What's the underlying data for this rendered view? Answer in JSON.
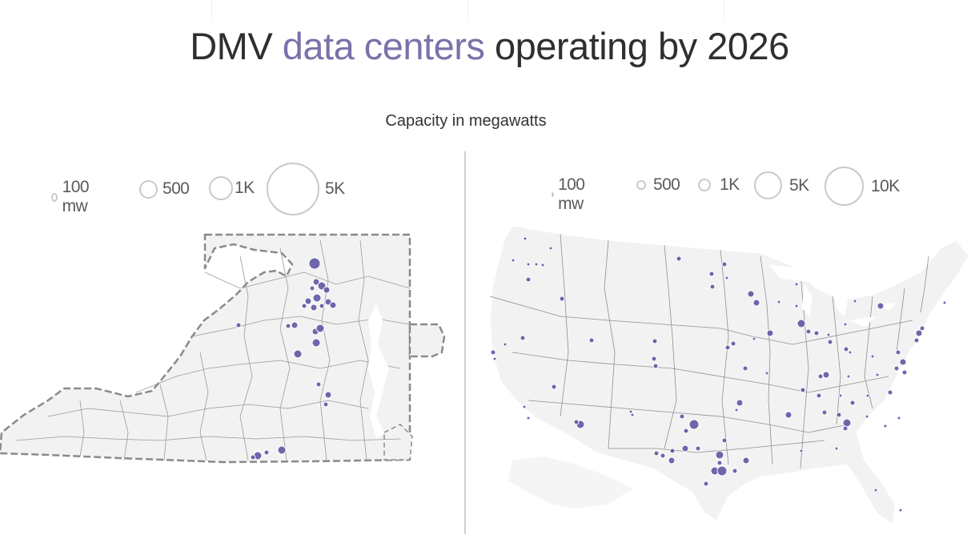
{
  "title": {
    "prefix": "DMV ",
    "highlight": "data centers",
    "suffix": " operating by 2026"
  },
  "subtitle": "Capacity in megawatts",
  "colors": {
    "accent": "#7a72aa",
    "dot": "#5d57a3",
    "land": "#f2f2f2",
    "border": "#9a9a9a",
    "legend_circle": "#c9c9c9"
  },
  "virginia_map": {
    "legend": [
      {
        "label": "100 mw",
        "mw": 100
      },
      {
        "label": "500",
        "mw": 500
      },
      {
        "label": "1K",
        "mw": 1000
      },
      {
        "label": "5K",
        "mw": 5000
      }
    ]
  },
  "us_map": {
    "legend": [
      {
        "label": "100 mw",
        "mw": 100
      },
      {
        "label": "500",
        "mw": 500
      },
      {
        "label": "1K",
        "mw": 1000
      },
      {
        "label": "5K",
        "mw": 5000
      },
      {
        "label": "10K",
        "mw": 10000
      }
    ]
  }
}
